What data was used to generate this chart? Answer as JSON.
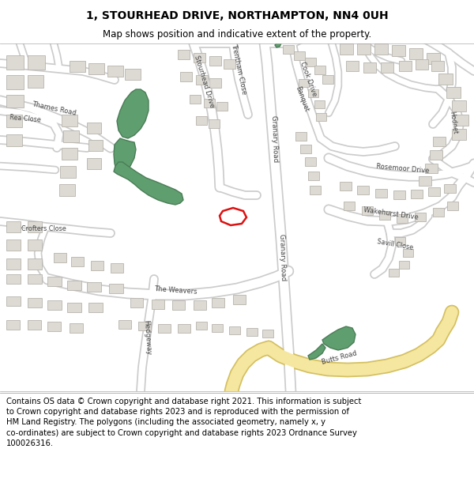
{
  "title": "1, STOURHEAD DRIVE, NORTHAMPTON, NN4 0UH",
  "subtitle": "Map shows position and indicative extent of the property.",
  "footer": "Contains OS data © Crown copyright and database right 2021. This information is subject\nto Crown copyright and database rights 2023 and is reproduced with the permission of\nHM Land Registry. The polygons (including the associated geometry, namely x, y\nco-ordinates) are subject to Crown copyright and database rights 2023 Ordnance Survey\n100026316.",
  "bg_color": "#eeece8",
  "road_color": "#ffffff",
  "road_outline_color": "#cccccc",
  "building_color": "#dddad4",
  "building_outline_color": "#b8b4ae",
  "green_color": "#5f9e6e",
  "green_outline": "#4a7d57",
  "red_color": "#dd1111",
  "major_road_color": "#f5e6a0",
  "major_road_outline": "#d4c060",
  "label_color": "#444444",
  "title_fontsize": 10,
  "subtitle_fontsize": 8.5,
  "footer_fontsize": 7.2
}
